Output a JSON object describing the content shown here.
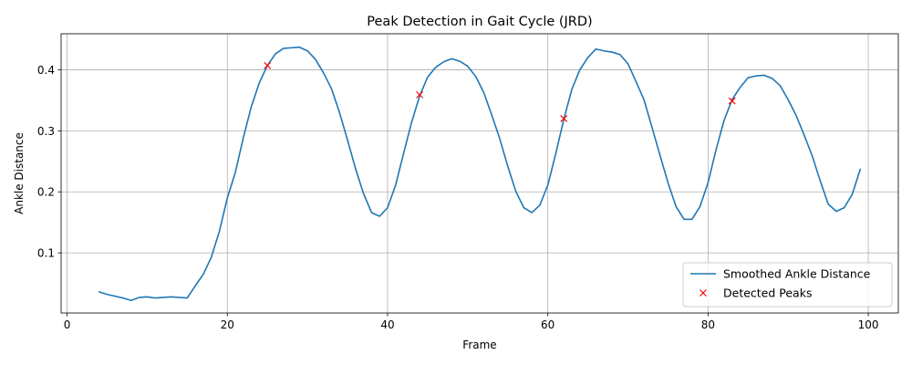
{
  "chart_data": {
    "type": "line",
    "title": "Peak Detection in Gait Cycle (JRD)",
    "xlabel": "Frame",
    "ylabel": "Ankle Distance",
    "xlim": [
      -0.75,
      103.75
    ],
    "ylim": [
      0.0015,
      0.459
    ],
    "xticks": [
      0,
      20,
      40,
      60,
      80,
      100
    ],
    "yticks": [
      0.1,
      0.2,
      0.3,
      0.4
    ],
    "grid": true,
    "legend_position": "lower-right",
    "colors": {
      "line": "#1f77b4",
      "peaks": "#ff0000"
    },
    "series": [
      {
        "name": "Smoothed Ankle Distance",
        "kind": "line",
        "x": [
          4,
          5,
          6,
          7,
          8,
          9,
          10,
          11,
          12,
          13,
          14,
          15,
          16,
          17,
          18,
          19,
          20,
          21,
          22,
          23,
          24,
          25,
          26,
          27,
          28,
          29,
          30,
          31,
          32,
          33,
          34,
          35,
          36,
          37,
          38,
          39,
          40,
          41,
          42,
          43,
          44,
          45,
          46,
          47,
          48,
          49,
          50,
          51,
          52,
          53,
          54,
          55,
          56,
          57,
          58,
          59,
          60,
          61,
          62,
          63,
          64,
          65,
          66,
          67,
          68,
          69,
          70,
          71,
          72,
          73,
          74,
          75,
          76,
          77,
          78,
          79,
          80,
          81,
          82,
          83,
          84,
          85,
          86,
          87,
          88,
          89,
          90,
          91,
          92,
          93,
          94,
          95,
          96,
          97,
          98,
          99
        ],
        "y": [
          0.036,
          0.032,
          0.029,
          0.026,
          0.022,
          0.027,
          0.028,
          0.026,
          0.027,
          0.028,
          0.027,
          0.026,
          0.046,
          0.065,
          0.093,
          0.135,
          0.19,
          0.232,
          0.289,
          0.34,
          0.379,
          0.407,
          0.426,
          0.435,
          0.436,
          0.437,
          0.431,
          0.417,
          0.395,
          0.369,
          0.33,
          0.285,
          0.238,
          0.197,
          0.166,
          0.16,
          0.174,
          0.211,
          0.263,
          0.314,
          0.357,
          0.388,
          0.404,
          0.413,
          0.418,
          0.414,
          0.406,
          0.389,
          0.363,
          0.326,
          0.287,
          0.242,
          0.201,
          0.174,
          0.166,
          0.178,
          0.211,
          0.263,
          0.319,
          0.368,
          0.4,
          0.42,
          0.434,
          0.431,
          0.429,
          0.425,
          0.41,
          0.381,
          0.351,
          0.306,
          0.26,
          0.215,
          0.176,
          0.155,
          0.155,
          0.176,
          0.215,
          0.269,
          0.317,
          0.351,
          0.371,
          0.387,
          0.39,
          0.391,
          0.386,
          0.374,
          0.351,
          0.325,
          0.293,
          0.259,
          0.218,
          0.18,
          0.168,
          0.174,
          0.196,
          0.237
        ]
      },
      {
        "name": "Detected Peaks",
        "kind": "marker",
        "x": [
          25,
          44,
          62,
          83
        ],
        "y": [
          0.407,
          0.359,
          0.32,
          0.349
        ]
      }
    ]
  }
}
